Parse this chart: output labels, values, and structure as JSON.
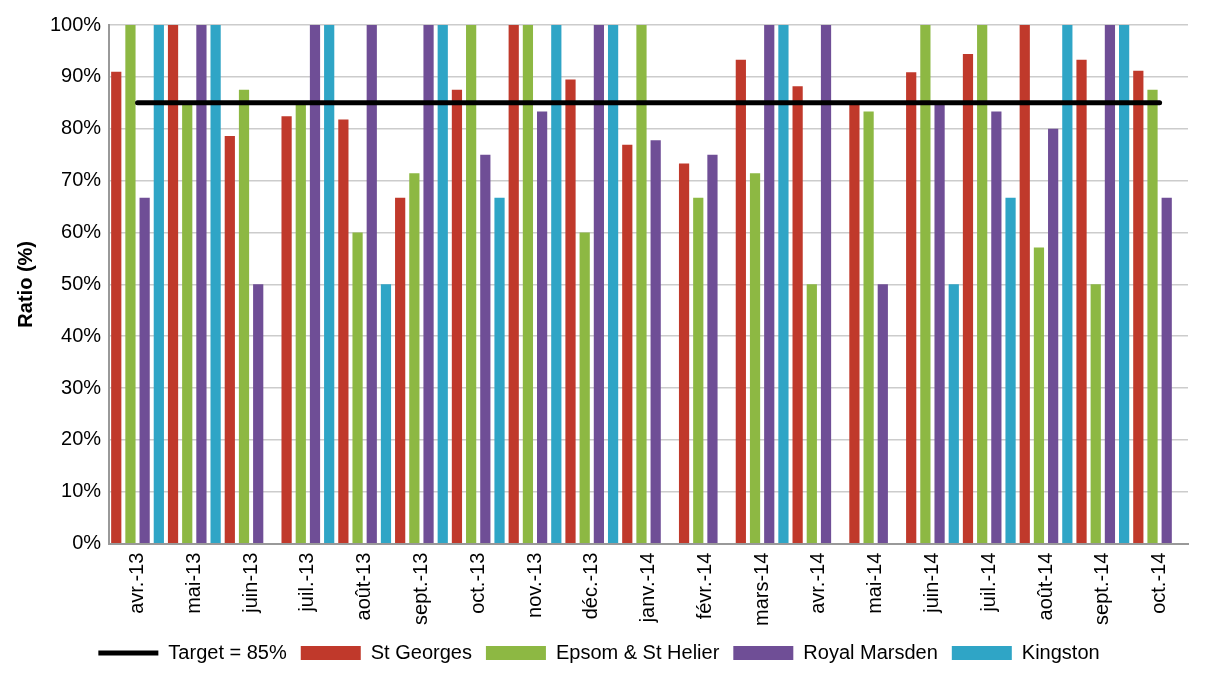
{
  "chart_data": {
    "type": "bar",
    "ylabel": "Ratio (%)",
    "categories": [
      "avr.-13",
      "mai-13",
      "juin-13",
      "juil.-13",
      "août-13",
      "sept.-13",
      "oct.-13",
      "nov.-13",
      "déc.-13",
      "janv.-14",
      "févr.-14",
      "mars-14",
      "avr.-14",
      "mai-14",
      "juin-14",
      "juil.-14",
      "août-14",
      "sept.-14",
      "oct.-14"
    ],
    "series": [
      {
        "name": "St Georges",
        "color": "#c0392b",
        "values": [
          91,
          100,
          78.6,
          82.4,
          81.8,
          66.7,
          87.5,
          100,
          89.5,
          76.9,
          73.3,
          93.3,
          88.2,
          85,
          90.9,
          94.4,
          100,
          93.3,
          91.2
        ]
      },
      {
        "name": "Epsom & St Helier",
        "color": "#8db843",
        "values": [
          100,
          85,
          87.5,
          85,
          60,
          71.4,
          100,
          100,
          60,
          100,
          66.7,
          71.4,
          50,
          83.3,
          100,
          100,
          57.1,
          50,
          87.5
        ]
      },
      {
        "name": "Royal Marsden",
        "color": "#6f4e96",
        "values": [
          66.7,
          100,
          50,
          100,
          100,
          100,
          75,
          83.3,
          100,
          77.8,
          75,
          100,
          100,
          50,
          85,
          83.3,
          80,
          100,
          66.7
        ]
      },
      {
        "name": "Kingston",
        "color": "#2fa5c6",
        "values": [
          100,
          100,
          null,
          100,
          50,
          100,
          66.7,
          100,
          100,
          null,
          null,
          100,
          null,
          null,
          50,
          66.7,
          100,
          100,
          null
        ]
      },
      {
        "name": "Target = 85%",
        "type": "line",
        "color": "#000000",
        "values": [
          85,
          85,
          85,
          85,
          85,
          85,
          85,
          85,
          85,
          85,
          85,
          85,
          85,
          85,
          85,
          85,
          85,
          85,
          85
        ]
      }
    ],
    "ylim": [
      0,
      100
    ],
    "yticks": [
      {
        "value": 0,
        "label": "0%"
      },
      {
        "value": 10,
        "label": "10%"
      },
      {
        "value": 20,
        "label": "20%"
      },
      {
        "value": 30,
        "label": "30%"
      },
      {
        "value": 40,
        "label": "40%"
      },
      {
        "value": 50,
        "label": "50%"
      },
      {
        "value": 60,
        "label": "60%"
      },
      {
        "value": 70,
        "label": "70%"
      },
      {
        "value": 80,
        "label": "80%"
      },
      {
        "value": 90,
        "label": "90%"
      },
      {
        "value": 100,
        "label": "100%"
      }
    ],
    "grid": "y",
    "legend": "bottom",
    "marker": "none",
    "line_style": "solid"
  }
}
